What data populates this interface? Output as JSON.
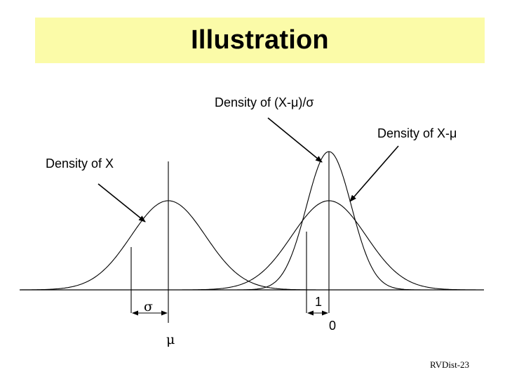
{
  "title": "Illustration",
  "labels": {
    "density_standardized": "Density of (X-μ)/σ",
    "density_centered": "Density of X-μ",
    "density_x": "Density of X",
    "sigma": "σ",
    "one": "1",
    "mu": "μ",
    "zero": "0"
  },
  "footer": "RVDist-23",
  "colors": {
    "banner": "#fbfba8",
    "stroke": "#000000",
    "background": "#ffffff"
  }
}
